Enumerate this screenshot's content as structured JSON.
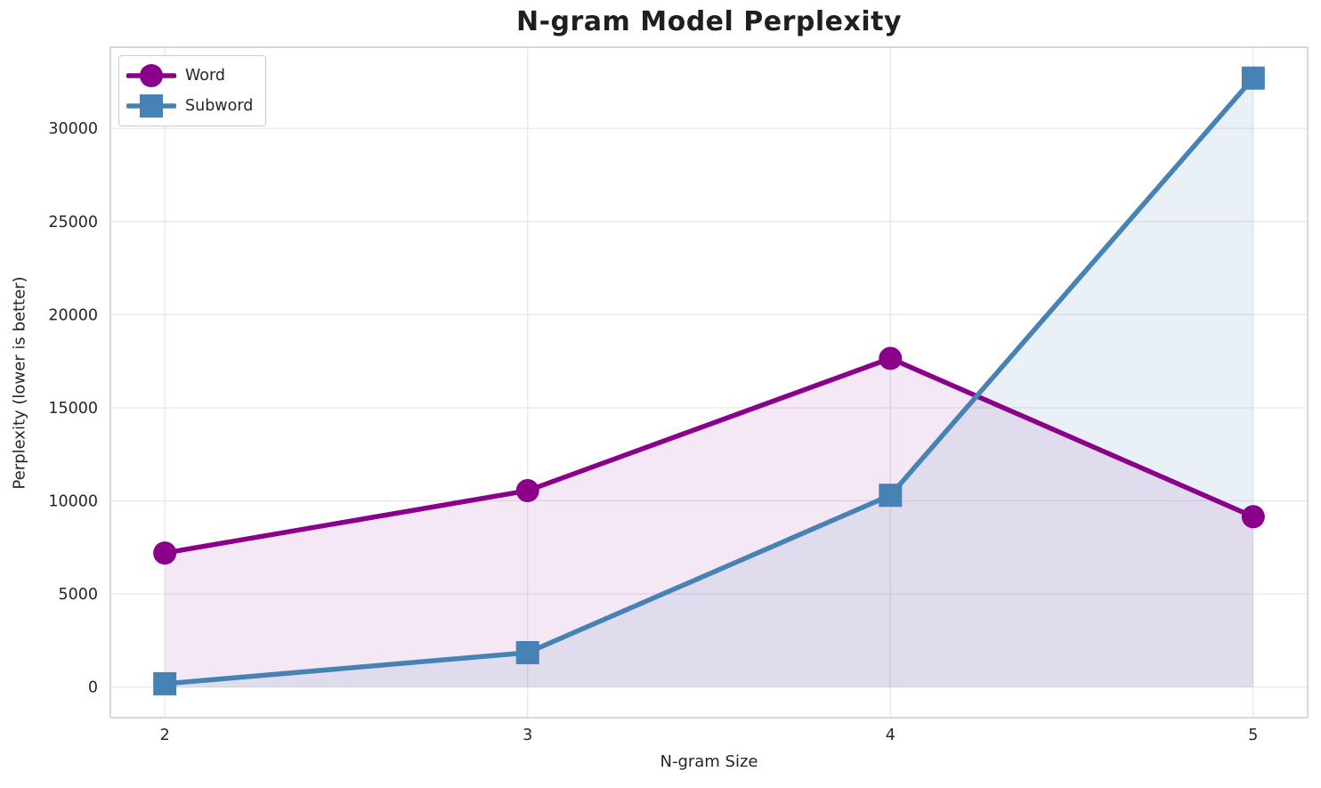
{
  "chart_data": {
    "type": "line",
    "title": "N-gram Model Perplexity",
    "xlabel": "N-gram Size",
    "ylabel": "Perplexity (lower is better)",
    "x": [
      2,
      3,
      4,
      5
    ],
    "x_tick_labels": [
      "2",
      "3",
      "4",
      "5"
    ],
    "y_ticks": [
      0,
      5000,
      10000,
      15000,
      20000,
      25000,
      30000
    ],
    "y_tick_labels": [
      "0",
      "5000",
      "10000",
      "15000",
      "20000",
      "25000",
      "30000"
    ],
    "xlim": [
      1.85,
      5.15
    ],
    "ylim": [
      -1640,
      34360
    ],
    "grid": true,
    "legend_position": "upper-left",
    "area_fill_to_zero": true,
    "series": [
      {
        "name": "Word",
        "marker": "circle",
        "color": "#8B008B",
        "fill_color": "rgba(139,0,139,0.09)",
        "values": [
          7200,
          10550,
          17650,
          9150
        ]
      },
      {
        "name": "Subword",
        "marker": "square",
        "color": "#4682B4",
        "fill_color": "rgba(70,130,180,0.12)",
        "values": [
          180,
          1850,
          10300,
          32700
        ]
      }
    ]
  },
  "style": {
    "grid_color": "#e6e6e6",
    "spine_color": "#cccccc",
    "background": "#ffffff",
    "line_width": 5.5,
    "marker_radius": 13,
    "square_size": 26
  }
}
